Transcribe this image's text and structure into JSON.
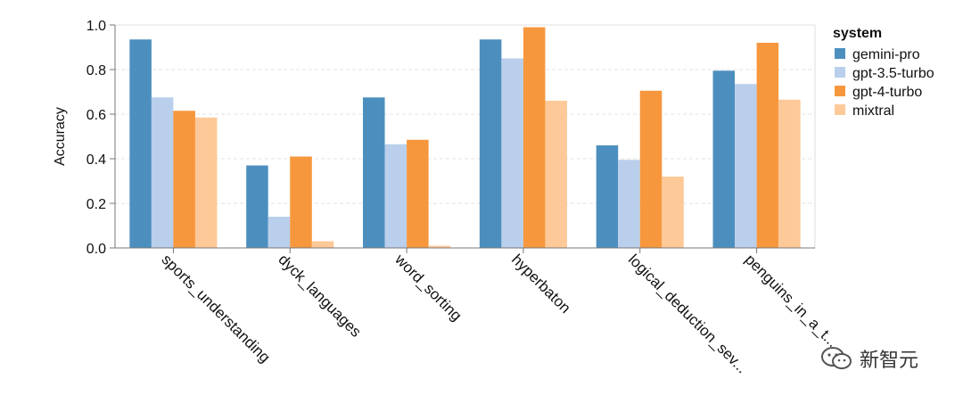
{
  "chart_data": {
    "type": "bar",
    "categories": [
      "sports_understanding",
      "dyck_languages",
      "word_sorting",
      "hyperbaton",
      "logical_deduction_sev...",
      "penguins_in_a_t..."
    ],
    "series": [
      {
        "name": "gemini-pro",
        "color": "#4c8fbf",
        "values": [
          0.935,
          0.37,
          0.675,
          0.935,
          0.46,
          0.795
        ]
      },
      {
        "name": "gpt-3.5-turbo",
        "color": "#b9cfeb",
        "values": [
          0.675,
          0.14,
          0.465,
          0.85,
          0.395,
          0.735
        ]
      },
      {
        "name": "gpt-4-turbo",
        "color": "#f7973d",
        "values": [
          0.615,
          0.41,
          0.485,
          0.99,
          0.705,
          0.92
        ]
      },
      {
        "name": "mixtral",
        "color": "#fdc998",
        "values": [
          0.585,
          0.03,
          0.01,
          0.66,
          0.32,
          0.665
        ]
      }
    ],
    "ylabel": "Accuracy",
    "ylim": [
      0,
      1.0
    ],
    "yticks": [
      "0.0",
      "0.2",
      "0.4",
      "0.6",
      "0.8",
      "1.0"
    ],
    "legend_title": "system",
    "legend_position": "right",
    "grid": true
  },
  "watermark": {
    "text": "新智元",
    "icon": "wechat-icon"
  }
}
